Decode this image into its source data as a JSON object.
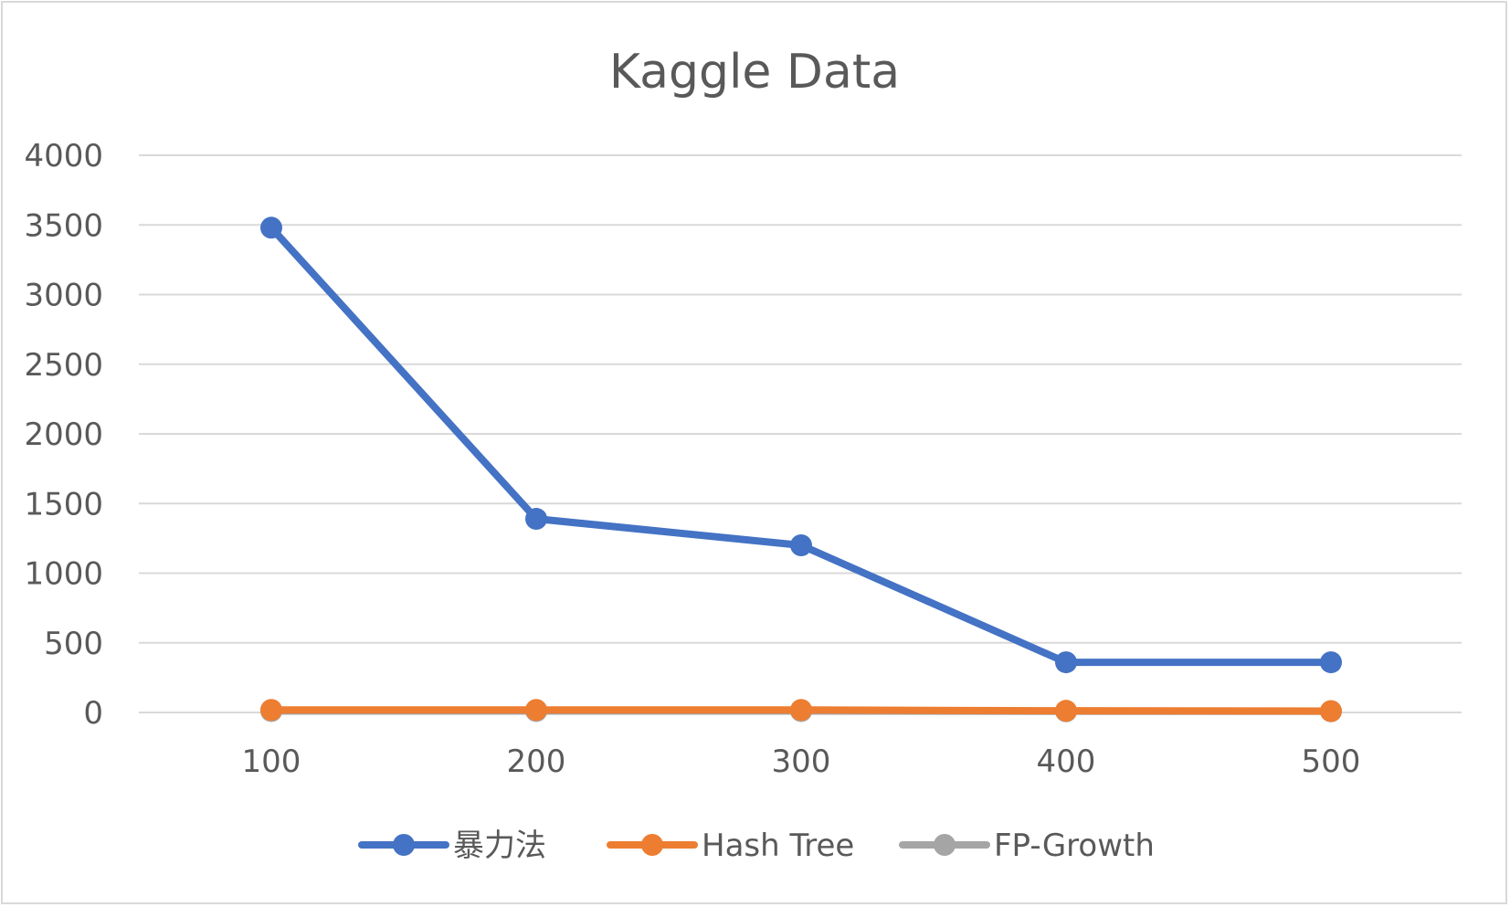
{
  "chart_data": {
    "type": "line",
    "title": "Kaggle Data",
    "xlabel": "",
    "ylabel": "",
    "categories": [
      "100",
      "200",
      "300",
      "400",
      "500"
    ],
    "ylim": [
      0,
      4000
    ],
    "yticks": [
      "0",
      "500",
      "1000",
      "1500",
      "2000",
      "2500",
      "3000",
      "3500",
      "4000"
    ],
    "grid": true,
    "legend_position": "bottom",
    "series": [
      {
        "name": "暴力法",
        "color": "#4472c4",
        "values": [
          3480,
          1390,
          1200,
          360,
          360
        ]
      },
      {
        "name": "Hash Tree",
        "color": "#ed7d31",
        "values": [
          18,
          18,
          18,
          12,
          10
        ]
      },
      {
        "name": "FP-Growth",
        "color": "#a5a5a5",
        "values": [
          10,
          10,
          10,
          8,
          8
        ]
      }
    ]
  }
}
